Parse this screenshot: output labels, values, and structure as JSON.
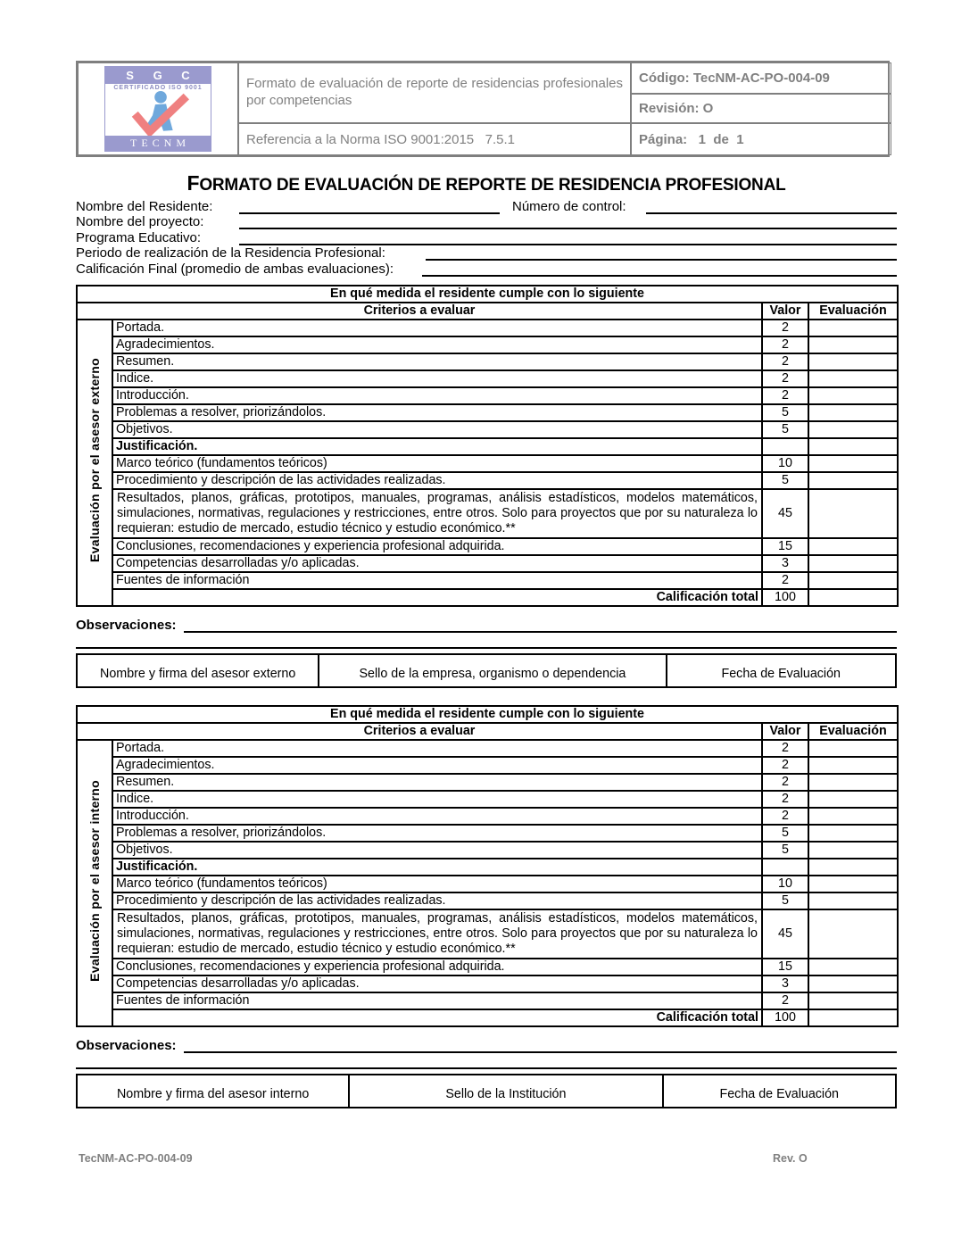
{
  "header": {
    "logo": {
      "sgc_text": "S G C",
      "certificado_text": "CERTIFICADO  ISO 9001",
      "tecnm_text": "TECNM"
    },
    "form_name": "Formato de evaluación de reporte de residencias profesionales por competencias",
    "reference": "Referencia a la Norma ISO 9001:2015   7.5.1",
    "codigo": "Código: TecNM-AC-PO-004-09",
    "revision": "Revisión: O",
    "pagina": "Página:   1  de  1"
  },
  "title": "FORMATO DE EVALUACIÓN DE REPORTE DE RESIDENCIA PROFESIONAL",
  "fields": {
    "residente_label": "Nombre del Residente:",
    "residente_value": "",
    "control_label": "Número de control:",
    "control_value": "",
    "proyecto_label": "Nombre del proyecto:",
    "proyecto_value": "",
    "programa_label": "Programa Educativo:",
    "programa_value": "",
    "periodo_label": "Periodo de realización de la Residencia Profesional:",
    "periodo_value": "",
    "calificacion_label": "Calificación Final (promedio de ambas evaluaciones):",
    "calificacion_value": ""
  },
  "evaluation_table": {
    "banner": "En qué medida el residente cumple con lo siguiente",
    "col_criterios": "Criterios a evaluar",
    "col_valor": "Valor",
    "col_evaluacion": "Evaluación",
    "total_label": "Calificación total",
    "total_value": "100",
    "rows": [
      {
        "criterion": "Portada.",
        "valor": "2"
      },
      {
        "criterion": "Agradecimientos.",
        "valor": "2"
      },
      {
        "criterion": "Resumen.",
        "valor": "2"
      },
      {
        "criterion": "Indice.",
        "valor": "2"
      },
      {
        "criterion": "Introducción.",
        "valor": "2"
      },
      {
        "criterion": "Problemas a resolver, priorizándolos.",
        "valor": "5"
      },
      {
        "criterion": "Objetivos.",
        "valor": "5"
      },
      {
        "criterion": "Justificación.",
        "valor": "",
        "bold": true
      },
      {
        "criterion": "Marco teórico (fundamentos teóricos)",
        "valor": "10"
      },
      {
        "criterion": "Procedimiento y descripción de las actividades realizadas.",
        "valor": "5"
      },
      {
        "criterion": "Resultados, planos, gráficas, prototipos, manuales, programas, análisis estadísticos, modelos matemáticos, simulaciones, normativas, regulaciones y restricciones, entre otros. Solo para proyectos que por su naturaleza lo requieran: estudio de mercado, estudio técnico y estudio económico.**",
        "valor": "45",
        "justify": true
      },
      {
        "criterion": "Conclusiones, recomendaciones y experiencia profesional adquirida.",
        "valor": "15"
      },
      {
        "criterion": "Competencias desarrolladas y/o aplicadas.",
        "valor": "3"
      },
      {
        "criterion": "Fuentes de información",
        "valor": "2"
      }
    ]
  },
  "sections": [
    {
      "id": "externo",
      "side_label": "Evaluación por el asesor externo",
      "observaciones_label": "Observaciones:",
      "observaciones_value": "",
      "signature_cells": [
        "Nombre y firma del asesor externo",
        "Sello de la empresa, organismo o dependencia",
        "Fecha de Evaluación"
      ]
    },
    {
      "id": "interno",
      "side_label": "Evaluación por el asesor interno",
      "observaciones_label": "Observaciones:",
      "observaciones_value": "",
      "signature_cells": [
        "Nombre y firma del asesor interno",
        "Sello de la Institución",
        "Fecha de Evaluación"
      ]
    }
  ],
  "footer": {
    "left": "TecNM-AC-PO-004-09",
    "right": "Rev. O"
  }
}
